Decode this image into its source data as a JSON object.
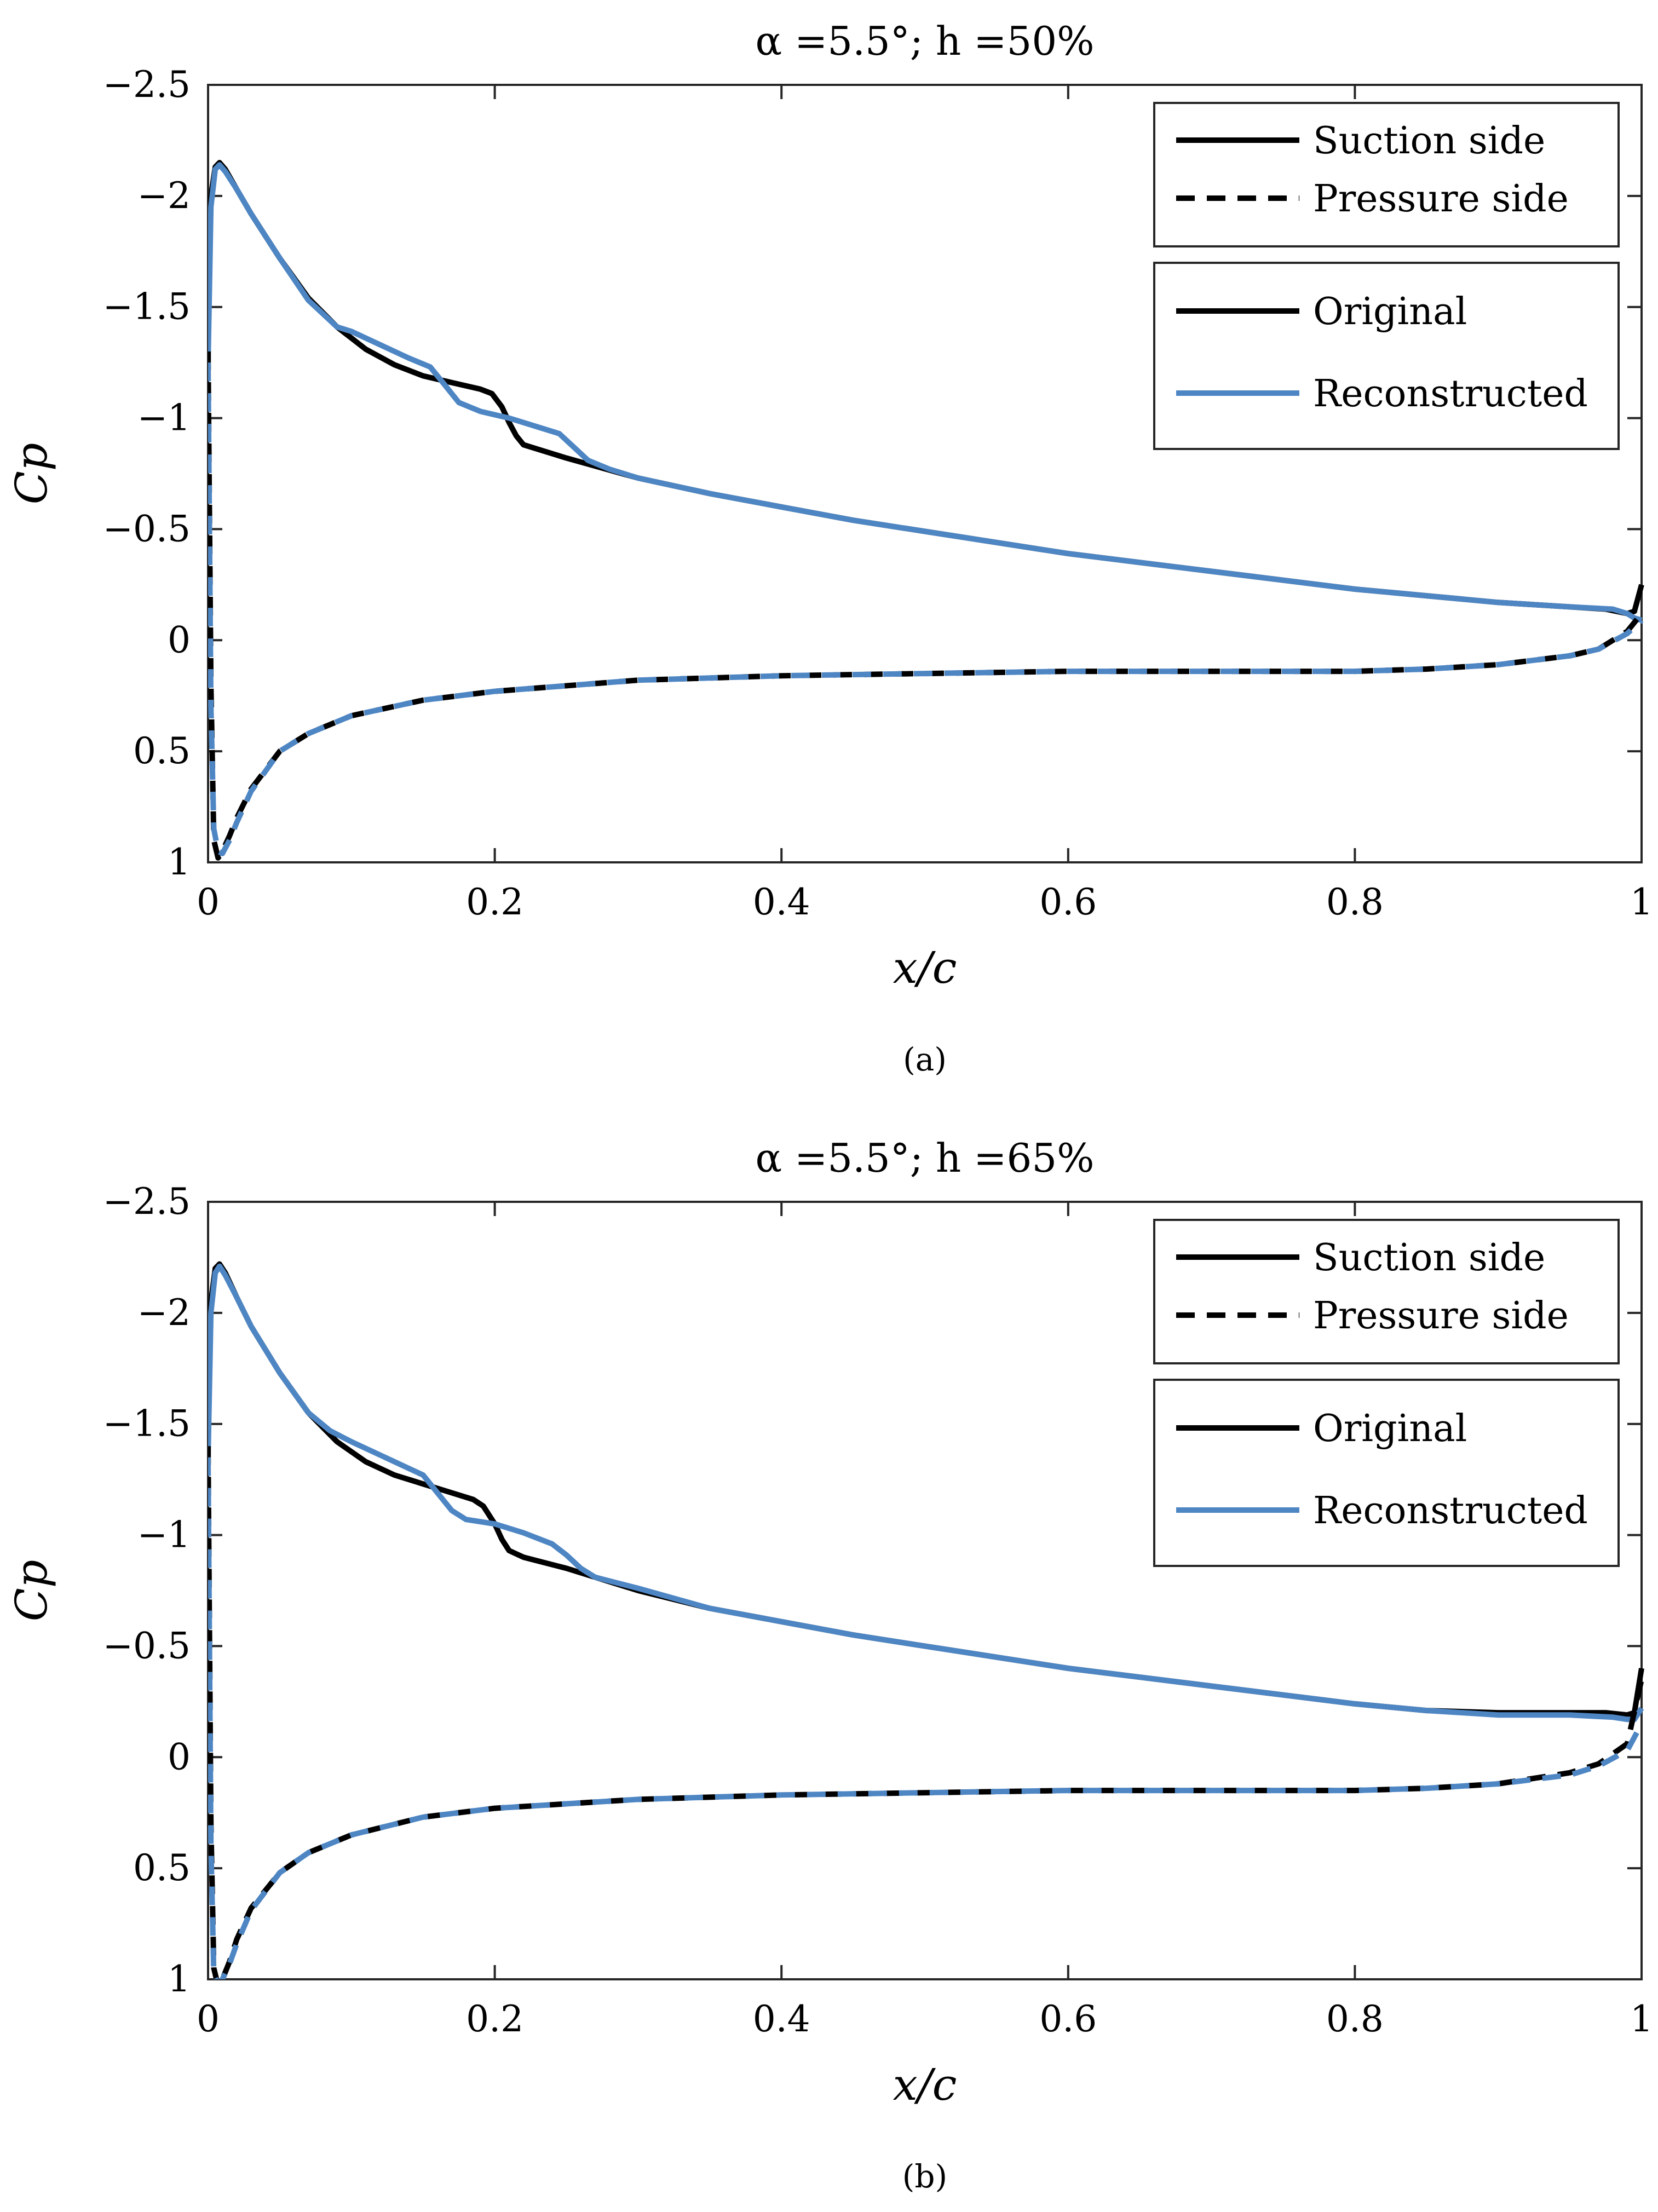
{
  "chart_data": [
    {
      "type": "line",
      "panel_caption": "(a)",
      "title": "α =5.5°; h =50%",
      "xlabel": "x/c",
      "ylabel": "Cp",
      "xlim": [
        0,
        1
      ],
      "ylim": [
        -2.5,
        1
      ],
      "y_reversed": true,
      "grid": false,
      "x_ticks": [
        0,
        0.2,
        0.4,
        0.6,
        0.8,
        1
      ],
      "x_tick_labels": [
        "0",
        "0.2",
        "0.4",
        "0.6",
        "0.8",
        "1"
      ],
      "y_ticks": [
        -2.5,
        -2,
        -1.5,
        -1,
        -0.5,
        0,
        0.5,
        1
      ],
      "y_tick_labels": [
        "−2.5",
        "−2",
        "−1.5",
        "−1",
        "−0.5",
        "0",
        "0.5",
        "1"
      ],
      "legend_style": {
        "title": "",
        "items": [
          {
            "label": "Suction side",
            "dash": "solid"
          },
          {
            "label": "Pressure side",
            "dash": "dashed"
          }
        ],
        "placement": "top-right"
      },
      "legend_series": {
        "items": [
          {
            "label": "Original",
            "color": "#000000"
          },
          {
            "label": "Reconstructed",
            "color": "#4E86C4"
          }
        ],
        "placement": "top-right"
      },
      "series": [
        {
          "name": "Original – Suction side",
          "color": "#000000",
          "dash": "solid",
          "x": [
            0,
            0.002,
            0.005,
            0.008,
            0.012,
            0.02,
            0.03,
            0.05,
            0.07,
            0.09,
            0.11,
            0.13,
            0.15,
            0.17,
            0.19,
            0.198,
            0.205,
            0.21,
            0.215,
            0.22,
            0.25,
            0.3,
            0.35,
            0.4,
            0.45,
            0.5,
            0.55,
            0.6,
            0.65,
            0.7,
            0.75,
            0.8,
            0.85,
            0.9,
            0.95,
            0.975,
            0.99,
            0.995,
            1.0
          ],
          "y": [
            -1.3,
            -2.0,
            -2.13,
            -2.15,
            -2.12,
            -2.03,
            -1.92,
            -1.72,
            -1.54,
            -1.41,
            -1.31,
            -1.24,
            -1.19,
            -1.16,
            -1.13,
            -1.11,
            -1.05,
            -0.98,
            -0.92,
            -0.88,
            -0.82,
            -0.73,
            -0.66,
            -0.6,
            -0.54,
            -0.49,
            -0.44,
            -0.39,
            -0.35,
            -0.31,
            -0.27,
            -0.23,
            -0.2,
            -0.17,
            -0.15,
            -0.14,
            -0.12,
            -0.13,
            -0.25
          ]
        },
        {
          "name": "Reconstructed – Suction side",
          "color": "#4E86C4",
          "dash": "solid",
          "x": [
            0,
            0.002,
            0.005,
            0.008,
            0.012,
            0.02,
            0.03,
            0.05,
            0.07,
            0.09,
            0.1,
            0.12,
            0.14,
            0.155,
            0.165,
            0.175,
            0.19,
            0.21,
            0.23,
            0.245,
            0.255,
            0.265,
            0.28,
            0.3,
            0.35,
            0.4,
            0.45,
            0.5,
            0.55,
            0.6,
            0.65,
            0.7,
            0.75,
            0.8,
            0.85,
            0.9,
            0.95,
            0.98,
            0.99,
            0.995,
            1.0
          ],
          "y": [
            -1.25,
            -1.95,
            -2.12,
            -2.14,
            -2.11,
            -2.03,
            -1.92,
            -1.72,
            -1.53,
            -1.41,
            -1.39,
            -1.33,
            -1.27,
            -1.23,
            -1.15,
            -1.07,
            -1.03,
            -1.0,
            -0.96,
            -0.93,
            -0.87,
            -0.81,
            -0.77,
            -0.73,
            -0.66,
            -0.6,
            -0.54,
            -0.49,
            -0.44,
            -0.39,
            -0.35,
            -0.31,
            -0.27,
            -0.23,
            -0.2,
            -0.17,
            -0.15,
            -0.14,
            -0.12,
            -0.1,
            -0.09
          ]
        },
        {
          "name": "Original – Pressure side",
          "color": "#000000",
          "dash": "dashed",
          "x": [
            0,
            0.002,
            0.004,
            0.007,
            0.01,
            0.015,
            0.02,
            0.03,
            0.05,
            0.07,
            0.1,
            0.15,
            0.2,
            0.3,
            0.4,
            0.5,
            0.6,
            0.7,
            0.8,
            0.85,
            0.9,
            0.95,
            0.97,
            0.99,
            1.0
          ],
          "y": [
            -1.3,
            0.2,
            0.9,
            0.98,
            0.95,
            0.88,
            0.8,
            0.67,
            0.5,
            0.42,
            0.34,
            0.27,
            0.23,
            0.18,
            0.16,
            0.15,
            0.14,
            0.14,
            0.14,
            0.13,
            0.11,
            0.07,
            0.04,
            -0.04,
            -0.12
          ]
        },
        {
          "name": "Reconstructed – Pressure side",
          "color": "#4E86C4",
          "dash": "dashed",
          "x": [
            0,
            0.002,
            0.004,
            0.007,
            0.01,
            0.015,
            0.02,
            0.03,
            0.05,
            0.07,
            0.1,
            0.15,
            0.2,
            0.3,
            0.4,
            0.5,
            0.6,
            0.7,
            0.8,
            0.85,
            0.9,
            0.95,
            0.97,
            0.99,
            1.0
          ],
          "y": [
            -1.25,
            0.3,
            0.85,
            0.95,
            0.96,
            0.9,
            0.82,
            0.68,
            0.5,
            0.42,
            0.34,
            0.27,
            0.23,
            0.18,
            0.16,
            0.15,
            0.14,
            0.14,
            0.14,
            0.13,
            0.11,
            0.07,
            0.04,
            -0.03,
            -0.09
          ]
        }
      ]
    },
    {
      "type": "line",
      "panel_caption": "(b)",
      "title": "α =5.5°; h =65%",
      "xlabel": "x/c",
      "ylabel": "Cp",
      "xlim": [
        0,
        1
      ],
      "ylim": [
        -2.5,
        1
      ],
      "y_reversed": true,
      "grid": false,
      "x_ticks": [
        0,
        0.2,
        0.4,
        0.6,
        0.8,
        1
      ],
      "x_tick_labels": [
        "0",
        "0.2",
        "0.4",
        "0.6",
        "0.8",
        "1"
      ],
      "y_ticks": [
        -2.5,
        -2,
        -1.5,
        -1,
        -0.5,
        0,
        0.5,
        1
      ],
      "y_tick_labels": [
        "−2.5",
        "−2",
        "−1.5",
        "−1",
        "−0.5",
        "0",
        "0.5",
        "1"
      ],
      "legend_style": {
        "title": "",
        "items": [
          {
            "label": "Suction side",
            "dash": "solid"
          },
          {
            "label": "Pressure side",
            "dash": "dashed"
          }
        ],
        "placement": "top-right"
      },
      "legend_series": {
        "items": [
          {
            "label": "Original",
            "color": "#000000"
          },
          {
            "label": "Reconstructed",
            "color": "#4E86C4"
          }
        ],
        "placement": "top-right"
      },
      "series": [
        {
          "name": "Original – Suction side",
          "color": "#000000",
          "dash": "solid",
          "x": [
            0,
            0.002,
            0.005,
            0.008,
            0.012,
            0.02,
            0.03,
            0.05,
            0.07,
            0.09,
            0.11,
            0.13,
            0.15,
            0.17,
            0.185,
            0.192,
            0.2,
            0.205,
            0.21,
            0.22,
            0.25,
            0.3,
            0.35,
            0.4,
            0.45,
            0.5,
            0.55,
            0.6,
            0.65,
            0.7,
            0.75,
            0.8,
            0.85,
            0.9,
            0.95,
            0.975,
            0.99,
            0.995,
            1.0
          ],
          "y": [
            -1.4,
            -2.05,
            -2.2,
            -2.22,
            -2.18,
            -2.07,
            -1.94,
            -1.73,
            -1.55,
            -1.42,
            -1.33,
            -1.27,
            -1.23,
            -1.19,
            -1.16,
            -1.13,
            -1.05,
            -0.98,
            -0.93,
            -0.9,
            -0.85,
            -0.75,
            -0.67,
            -0.61,
            -0.55,
            -0.5,
            -0.45,
            -0.4,
            -0.36,
            -0.32,
            -0.28,
            -0.24,
            -0.21,
            -0.2,
            -0.2,
            -0.2,
            -0.19,
            -0.2,
            -0.4
          ]
        },
        {
          "name": "Reconstructed – Suction side",
          "color": "#4E86C4",
          "dash": "solid",
          "x": [
            0,
            0.002,
            0.005,
            0.008,
            0.012,
            0.02,
            0.03,
            0.05,
            0.07,
            0.085,
            0.1,
            0.12,
            0.14,
            0.15,
            0.16,
            0.17,
            0.18,
            0.2,
            0.22,
            0.24,
            0.25,
            0.26,
            0.27,
            0.3,
            0.35,
            0.4,
            0.45,
            0.5,
            0.55,
            0.6,
            0.65,
            0.7,
            0.75,
            0.8,
            0.85,
            0.9,
            0.95,
            0.98,
            0.99,
            0.995,
            1.0
          ],
          "y": [
            -1.35,
            -2.0,
            -2.18,
            -2.21,
            -2.17,
            -2.07,
            -1.94,
            -1.73,
            -1.55,
            -1.47,
            -1.42,
            -1.36,
            -1.3,
            -1.27,
            -1.19,
            -1.11,
            -1.07,
            -1.05,
            -1.01,
            -0.96,
            -0.91,
            -0.85,
            -0.81,
            -0.76,
            -0.67,
            -0.61,
            -0.55,
            -0.5,
            -0.45,
            -0.4,
            -0.36,
            -0.32,
            -0.28,
            -0.24,
            -0.21,
            -0.19,
            -0.19,
            -0.18,
            -0.17,
            -0.17,
            -0.22
          ]
        },
        {
          "name": "Original – Pressure side",
          "color": "#000000",
          "dash": "dashed",
          "x": [
            0,
            0.002,
            0.004,
            0.007,
            0.01,
            0.015,
            0.02,
            0.03,
            0.05,
            0.07,
            0.1,
            0.15,
            0.2,
            0.3,
            0.4,
            0.5,
            0.6,
            0.7,
            0.8,
            0.85,
            0.9,
            0.95,
            0.97,
            0.99,
            1.0
          ],
          "y": [
            -1.4,
            0.3,
            0.95,
            1.03,
            1.0,
            0.92,
            0.82,
            0.68,
            0.52,
            0.43,
            0.35,
            0.27,
            0.23,
            0.19,
            0.17,
            0.16,
            0.15,
            0.15,
            0.15,
            0.14,
            0.12,
            0.07,
            0.03,
            -0.06,
            -0.35
          ]
        },
        {
          "name": "Reconstructed – Pressure side",
          "color": "#4E86C4",
          "dash": "dashed",
          "x": [
            0,
            0.002,
            0.004,
            0.007,
            0.01,
            0.015,
            0.02,
            0.03,
            0.05,
            0.07,
            0.1,
            0.15,
            0.2,
            0.3,
            0.4,
            0.5,
            0.6,
            0.7,
            0.8,
            0.85,
            0.9,
            0.95,
            0.97,
            0.99,
            1.0
          ],
          "y": [
            -1.35,
            0.4,
            0.98,
            1.02,
            1.0,
            0.93,
            0.84,
            0.69,
            0.52,
            0.43,
            0.35,
            0.27,
            0.23,
            0.19,
            0.17,
            0.16,
            0.15,
            0.15,
            0.15,
            0.14,
            0.12,
            0.08,
            0.04,
            -0.03,
            -0.15
          ]
        }
      ]
    }
  ]
}
